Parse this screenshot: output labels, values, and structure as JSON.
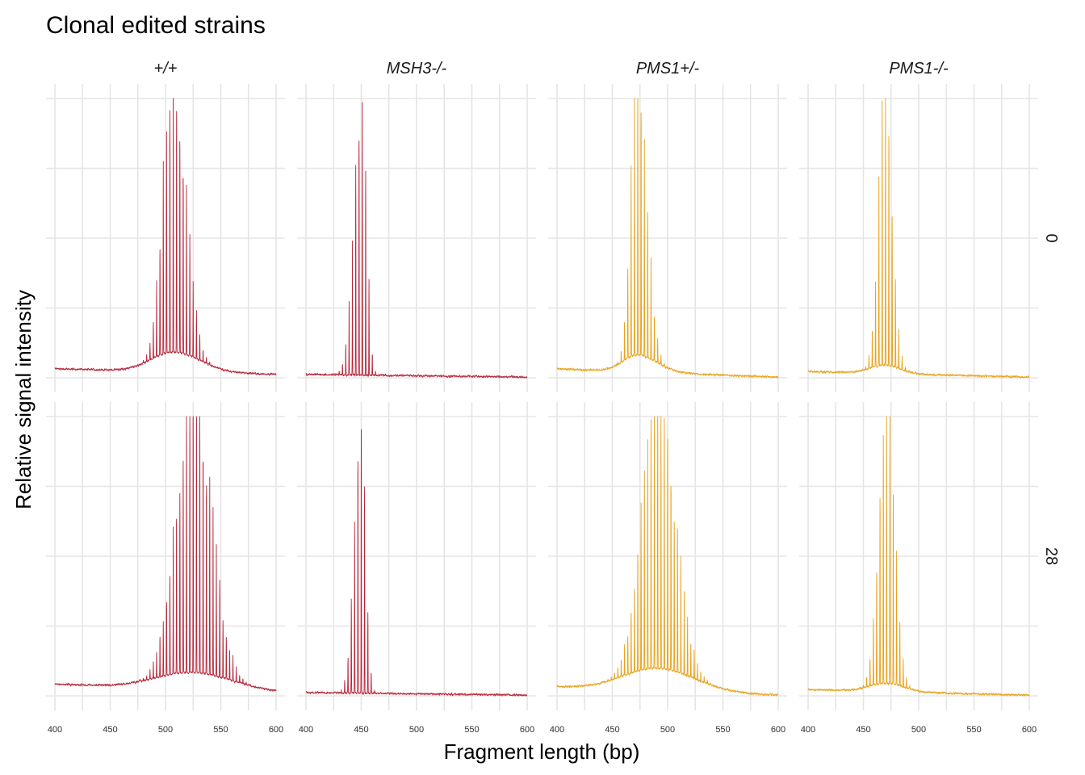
{
  "chart_data": {
    "type": "line",
    "title": "Clonal edited strains",
    "xlabel": "Fragment length (bp)",
    "ylabel": "Relative signal intensity",
    "xlim": [
      400,
      600
    ],
    "x_ticks": [
      "400",
      "450",
      "500",
      "550",
      "600"
    ],
    "y_ticks_labeled": false,
    "grid": true,
    "column_facets": [
      "+/+",
      "MSH3-/-",
      "PMS1+/-",
      "PMS1-/-"
    ],
    "row_facets": [
      "0",
      "28"
    ],
    "colors": {
      "+/+": "#b5283c",
      "MSH3-/-": "#b5283c",
      "PMS1+/-": "#e8a21a",
      "PMS1-/-": "#e8a21a"
    },
    "panels": [
      {
        "genotype": "+/+",
        "day": "0",
        "mode_bp": 507,
        "left_width_bp": 9,
        "right_width_bp": 11,
        "baseline_low_bp": 0.03,
        "baseline_high_bp": 0.01,
        "shoulder_bp": 0.07,
        "peak_relative": 1.0
      },
      {
        "genotype": "MSH3-/-",
        "day": "0",
        "mode_bp": 451,
        "left_width_bp": 7,
        "right_width_bp": 4,
        "baseline_low_bp": 0.01,
        "baseline_high_bp": 0.0,
        "shoulder_bp": 0.0,
        "peak_relative": 1.0
      },
      {
        "genotype": "PMS1+/-",
        "day": "0",
        "mode_bp": 473,
        "left_width_bp": 6,
        "right_width_bp": 8,
        "baseline_low_bp": 0.03,
        "baseline_high_bp": 0.0,
        "shoulder_bp": 0.06,
        "peak_relative": 1.0
      },
      {
        "genotype": "PMS1-/-",
        "day": "0",
        "mode_bp": 470,
        "left_width_bp": 6,
        "right_width_bp": 6,
        "baseline_low_bp": 0.02,
        "baseline_high_bp": 0.0,
        "shoulder_bp": 0.03,
        "peak_relative": 1.0
      },
      {
        "genotype": "+/+",
        "day": "28",
        "mode_bp": 525,
        "left_width_bp": 15,
        "right_width_bp": 16,
        "baseline_low_bp": 0.04,
        "baseline_high_bp": 0.01,
        "shoulder_bp": 0.06,
        "peak_relative": 1.0
      },
      {
        "genotype": "MSH3-/-",
        "day": "28",
        "mode_bp": 450,
        "left_width_bp": 6,
        "right_width_bp": 4,
        "baseline_low_bp": 0.01,
        "baseline_high_bp": 0.0,
        "shoulder_bp": 0.0,
        "peak_relative": 1.0
      },
      {
        "genotype": "PMS1+/-",
        "day": "28",
        "mode_bp": 491,
        "left_width_bp": 14,
        "right_width_bp": 15,
        "baseline_low_bp": 0.03,
        "baseline_high_bp": 0.0,
        "shoulder_bp": 0.08,
        "peak_relative": 1.0
      },
      {
        "genotype": "PMS1-/-",
        "day": "28",
        "mode_bp": 471,
        "left_width_bp": 7,
        "right_width_bp": 7,
        "baseline_low_bp": 0.02,
        "baseline_high_bp": 0.0,
        "shoulder_bp": 0.03,
        "peak_relative": 1.0
      }
    ]
  }
}
